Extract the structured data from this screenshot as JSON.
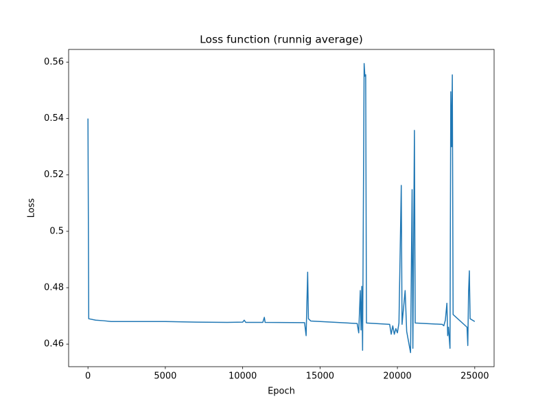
{
  "chart_data": {
    "type": "line",
    "title": "Loss function (runnig average)",
    "x_label": "Epoch",
    "y_label": "Loss",
    "x": [
      0,
      50,
      500,
      1000,
      1500,
      3000,
      5000,
      7000,
      9000,
      10000,
      10100,
      10200,
      11300,
      11400,
      11450,
      14000,
      14100,
      14200,
      14250,
      14400,
      17400,
      17500,
      17600,
      17650,
      17700,
      17750,
      17850,
      17900,
      17950,
      18000,
      19500,
      19600,
      19700,
      19800,
      19900,
      20000,
      20100,
      20250,
      20300,
      20450,
      20500,
      20600,
      20850,
      20950,
      21000,
      21100,
      21150,
      22900,
      23000,
      23100,
      23200,
      23250,
      23300,
      23400,
      23450,
      23500,
      23550,
      23600,
      24500,
      24550,
      24600,
      24650,
      24700,
      25000
    ],
    "series": [
      {
        "name": "Loss",
        "color": "#1f77b4",
        "values": [
          0.54,
          0.469,
          0.4685,
          0.4683,
          0.468,
          0.468,
          0.468,
          0.4678,
          0.4677,
          0.4678,
          0.4685,
          0.4677,
          0.4677,
          0.4695,
          0.4677,
          0.4676,
          0.463,
          0.4855,
          0.469,
          0.4682,
          0.4673,
          0.464,
          0.479,
          0.465,
          0.4805,
          0.4578,
          0.5595,
          0.555,
          0.5555,
          0.4675,
          0.467,
          0.4635,
          0.4665,
          0.4635,
          0.4655,
          0.464,
          0.4675,
          0.5163,
          0.467,
          0.476,
          0.479,
          0.4645,
          0.457,
          0.5148,
          0.4585,
          0.5358,
          0.4675,
          0.467,
          0.4665,
          0.4685,
          0.4745,
          0.463,
          0.466,
          0.4585,
          0.5495,
          0.53,
          0.5555,
          0.4705,
          0.466,
          0.4595,
          0.4785,
          0.486,
          0.469,
          0.468
        ]
      }
    ],
    "xlim": [
      -1250,
      26250
    ],
    "xticks": [
      0,
      5000,
      10000,
      15000,
      20000,
      25000
    ],
    "ylim": [
      0.452,
      0.5645
    ],
    "yticks": [
      0.46,
      0.48,
      0.5,
      0.52,
      0.54,
      0.56
    ],
    "grid": false
  }
}
